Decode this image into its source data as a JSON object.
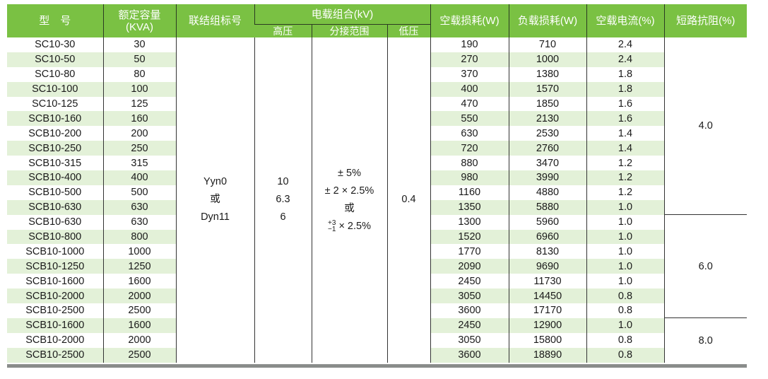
{
  "header": {
    "model": "型　号",
    "capacity": "额定容量",
    "capacity_unit": "(KVA)",
    "connection": "联结组标号",
    "voltage_group": "电载组合(kV)",
    "high_voltage": "高压",
    "tap_range": "分接范围",
    "low_voltage": "低压",
    "no_load_loss": "空载损耗(W)",
    "load_loss": "负载损耗(W)",
    "no_load_current": "空载电流(%)",
    "impedance": "短路抗阻(%)"
  },
  "merged": {
    "connection": [
      "Yyn0",
      "或",
      "Dyn11"
    ],
    "high_voltage": [
      "10",
      "6.3",
      "6"
    ],
    "tap_range": [
      "± 5%",
      "± 2 × 2.5%",
      "或",
      "× 2.5%"
    ],
    "tap_range_sup": "+3",
    "tap_range_sub": "−1",
    "low_voltage": "0.4"
  },
  "impedance_groups": [
    "4.0",
    "6.0",
    "8.0"
  ],
  "rows": [
    [
      "SC10-30",
      "30",
      "190",
      "710",
      "2.4"
    ],
    [
      "SC10-50",
      "50",
      "270",
      "1000",
      "2.4"
    ],
    [
      "SC10-80",
      "80",
      "370",
      "1380",
      "1.8"
    ],
    [
      "SC10-100",
      "100",
      "400",
      "1570",
      "1.8"
    ],
    [
      "SC10-125",
      "125",
      "470",
      "1850",
      "1.6"
    ],
    [
      "SCB10-160",
      "160",
      "550",
      "2130",
      "1.6"
    ],
    [
      "SCB10-200",
      "200",
      "630",
      "2530",
      "1.4"
    ],
    [
      "SCB10-250",
      "250",
      "720",
      "2760",
      "1.4"
    ],
    [
      "SCB10-315",
      "315",
      "880",
      "3470",
      "1.2"
    ],
    [
      "SCB10-400",
      "400",
      "980",
      "3990",
      "1.2"
    ],
    [
      "SCB10-500",
      "500",
      "1160",
      "4880",
      "1.2"
    ],
    [
      "SCB10-630",
      "630",
      "1350",
      "5880",
      "1.0"
    ],
    [
      "SCB10-630",
      "630",
      "1300",
      "5960",
      "1.0"
    ],
    [
      "SCB10-800",
      "800",
      "1520",
      "6960",
      "1.0"
    ],
    [
      "SCB10-1000",
      "1000",
      "1770",
      "8130",
      "1.0"
    ],
    [
      "SCB10-1250",
      "1250",
      "2090",
      "9690",
      "1.0"
    ],
    [
      "SCB10-1600",
      "1600",
      "2450",
      "11730",
      "1.0"
    ],
    [
      "SCB10-2000",
      "2000",
      "3050",
      "14450",
      "0.8"
    ],
    [
      "SCB10-2500",
      "2500",
      "3600",
      "17170",
      "0.8"
    ],
    [
      "SCB10-1600",
      "1600",
      "2450",
      "12900",
      "1.0"
    ],
    [
      "SCB10-2000",
      "2000",
      "3050",
      "15800",
      "0.8"
    ],
    [
      "SCB10-2500",
      "2500",
      "3600",
      "18890",
      "0.8"
    ]
  ],
  "colors": {
    "header_bg": "#7ac143",
    "stripe": "#e3f1d8",
    "bottom_bar": "#8a8d8b"
  }
}
